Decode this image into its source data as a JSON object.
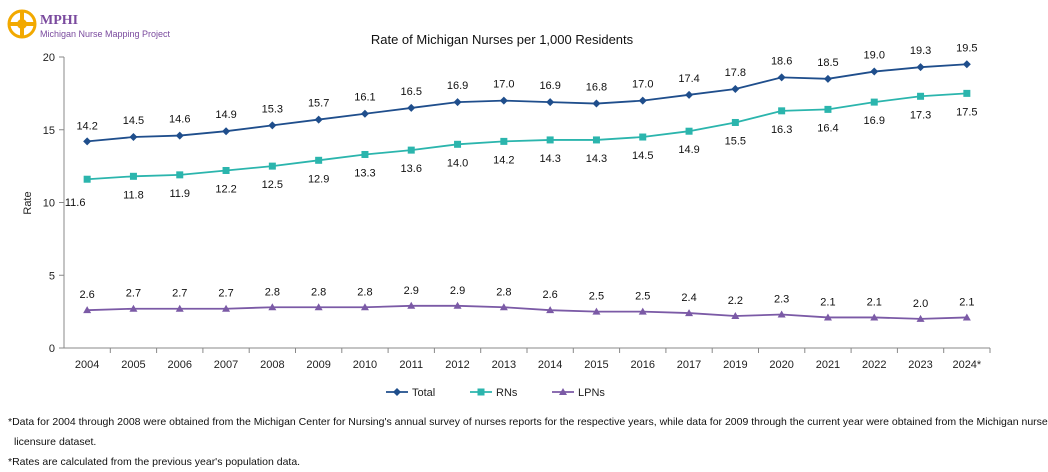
{
  "logo": {
    "brand": "MPHI",
    "subtitle": "Michigan Nurse Mapping Project",
    "brand_color": "#7a4a9e",
    "accent_color": "#f2a900"
  },
  "chart_data": {
    "type": "line",
    "title": "Rate of Michigan Nurses per 1,000 Residents",
    "ylabel": "Rate",
    "xlabel": "",
    "ylim": [
      0,
      20
    ],
    "yticks": [
      0,
      5,
      10,
      15,
      20
    ],
    "grid": false,
    "legend_position": "bottom",
    "categories": [
      "2004",
      "2005",
      "2006",
      "2007",
      "2008",
      "2009",
      "2010",
      "2011",
      "2012",
      "2013",
      "2014",
      "2015",
      "2016",
      "2017",
      "2019",
      "2020",
      "2021",
      "2022",
      "2023",
      "2024*"
    ],
    "series": [
      {
        "name": "Total",
        "color": "#1f4e8c",
        "marker": "diamond",
        "values": [
          14.2,
          14.5,
          14.6,
          14.9,
          15.3,
          15.7,
          16.1,
          16.5,
          16.9,
          17.0,
          16.9,
          16.8,
          17.0,
          17.4,
          17.8,
          18.6,
          18.5,
          19.0,
          19.3,
          19.5
        ],
        "labels": [
          "14.2",
          "14.5",
          "14.6",
          "14.9",
          "15.3",
          "15.7",
          "16.1",
          "16.5",
          "16.9",
          "17.0",
          "16.9",
          "16.8",
          "17.0",
          "17.4",
          "17.8",
          "18.6",
          "18.5",
          "19.0",
          "19.3",
          "19.5"
        ]
      },
      {
        "name": "RNs",
        "color": "#2bb5ad",
        "marker": "square",
        "values": [
          11.6,
          11.8,
          11.9,
          12.2,
          12.5,
          12.9,
          13.3,
          13.6,
          14.0,
          14.2,
          14.3,
          14.3,
          14.5,
          14.9,
          15.5,
          16.3,
          16.4,
          16.9,
          17.3,
          17.5
        ],
        "labels": [
          "11.6",
          "11.8",
          "11.9",
          "12.2",
          "12.5",
          "12.9",
          "13.3",
          "13.6",
          "14.0",
          "14.2",
          "14.3",
          "14.3",
          "14.5",
          "14.9",
          "15.5",
          "16.3",
          "16.4",
          "16.9",
          "17.3",
          "17.5"
        ]
      },
      {
        "name": "LPNs",
        "color": "#7b5aa6",
        "marker": "triangle",
        "values": [
          2.6,
          2.7,
          2.7,
          2.7,
          2.8,
          2.8,
          2.8,
          2.9,
          2.9,
          2.8,
          2.6,
          2.5,
          2.5,
          2.4,
          2.2,
          2.3,
          2.1,
          2.1,
          2.0,
          2.1
        ],
        "labels": [
          "2.6",
          "2.7",
          "2.7",
          "2.7",
          "2.8",
          "2.8",
          "2.8",
          "2.9",
          "2.9",
          "2.8",
          "2.6",
          "2.5",
          "2.5",
          "2.4",
          "2.2",
          "2.3",
          "2.1",
          "2.1",
          "2.0",
          "2.1"
        ]
      }
    ]
  },
  "footnotes": {
    "line1": "*Data for 2004 through 2008 were obtained from the Michigan Center for Nursing's annual survey of nurses reports for the respective years, while data for 2009 through the current year were obtained from the Michigan nurse",
    "line2": "licensure dataset.",
    "line3": "*Rates are calculated from the previous year's population data."
  }
}
